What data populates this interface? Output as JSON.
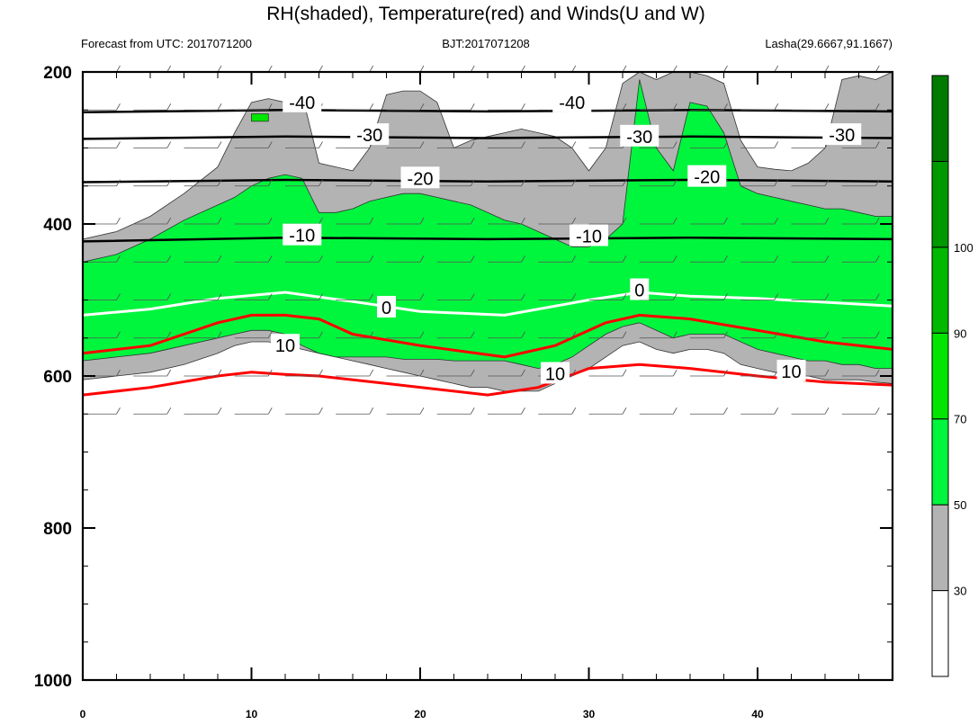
{
  "chart_data": {
    "type": "heatmap",
    "title": "RH(shaded), Temperature(red) and Winds(U and W)",
    "subtitle_left": "Forecast from UTC: 2017071200",
    "subtitle_center": "BJT:2017071208",
    "subtitle_right": "Lasha(29.6667,91.1667)",
    "xlabel": "",
    "ylabel": "",
    "xlim": [
      0,
      48
    ],
    "ylim": [
      1000,
      200
    ],
    "x_ticks": [
      "0",
      "10",
      "20",
      "30",
      "40"
    ],
    "y_ticks": [
      "200",
      "400",
      "600",
      "800",
      "1000"
    ],
    "grid": false,
    "legend": "right colorbar",
    "colorbar": {
      "levels": [
        "30",
        "50",
        "70",
        "90",
        "100"
      ],
      "colors": [
        "#ffffff",
        "#b3b3b3",
        "#00f53d",
        "#00e600",
        "#00b800",
        "#009900",
        "#007a00"
      ]
    },
    "series": [
      {
        "name": "RH>30",
        "color": "#b3b3b3",
        "x": [
          0,
          2,
          4,
          6,
          8,
          9,
          10,
          11,
          12,
          13,
          14,
          15,
          16,
          17,
          18,
          19,
          20,
          21,
          22,
          23,
          24,
          25,
          26,
          27,
          28,
          29,
          30,
          31,
          32,
          33,
          34,
          35,
          36,
          37,
          38,
          39,
          40,
          41,
          42,
          43,
          44,
          45,
          46,
          47,
          48
        ],
        "top": [
          420,
          410,
          390,
          360,
          325,
          280,
          240,
          235,
          240,
          230,
          320,
          325,
          330,
          300,
          230,
          225,
          225,
          240,
          300,
          290,
          285,
          280,
          275,
          280,
          285,
          300,
          330,
          300,
          215,
          200,
          210,
          200,
          200,
          205,
          215,
          290,
          325,
          328,
          330,
          320,
          300,
          210,
          205,
          210,
          200
        ],
        "bottom": [
          605,
          600,
          595,
          585,
          570,
          560,
          555,
          555,
          560,
          565,
          570,
          575,
          580,
          585,
          590,
          595,
          600,
          605,
          610,
          615,
          615,
          620,
          620,
          620,
          610,
          600,
          590,
          575,
          560,
          555,
          565,
          570,
          565,
          565,
          570,
          585,
          590,
          595,
          600,
          600,
          605,
          605,
          605,
          608,
          610
        ]
      },
      {
        "name": "RH>50",
        "color": "#00f53d",
        "x": [
          0,
          2,
          4,
          6,
          8,
          9,
          10,
          11,
          12,
          13,
          14,
          15,
          16,
          17,
          18,
          19,
          20,
          21,
          22,
          23,
          24,
          25,
          26,
          27,
          28,
          29,
          30,
          31,
          32,
          33,
          34,
          35,
          36,
          37,
          38,
          39,
          40,
          41,
          42,
          43,
          44,
          45,
          46,
          47,
          48
        ],
        "top": [
          450,
          440,
          420,
          395,
          375,
          365,
          350,
          340,
          335,
          340,
          385,
          385,
          380,
          370,
          365,
          360,
          360,
          365,
          370,
          375,
          385,
          395,
          400,
          410,
          420,
          430,
          430,
          420,
          400,
          210,
          300,
          330,
          240,
          245,
          280,
          350,
          360,
          365,
          370,
          375,
          380,
          380,
          385,
          390,
          390
        ],
        "bottom": [
          580,
          575,
          570,
          560,
          550,
          545,
          540,
          540,
          545,
          560,
          570,
          575,
          575,
          575,
          575,
          578,
          578,
          578,
          580,
          580,
          580,
          580,
          585,
          590,
          585,
          575,
          560,
          545,
          535,
          530,
          540,
          550,
          545,
          545,
          545,
          555,
          565,
          570,
          575,
          580,
          580,
          585,
          585,
          590,
          590
        ]
      },
      {
        "name": "RH>70",
        "color": "#00e600",
        "x": [
          10,
          11
        ],
        "top": [
          255,
          255
        ],
        "bottom": [
          265,
          265
        ]
      },
      {
        "name": "T=-40",
        "color": "#000000",
        "x": [
          0,
          12,
          24,
          36,
          48
        ],
        "y": [
          253,
          250,
          252,
          250,
          252
        ]
      },
      {
        "name": "T=-30",
        "color": "#000000",
        "x": [
          0,
          12,
          24,
          36,
          48
        ],
        "y": [
          288,
          285,
          287,
          285,
          287
        ]
      },
      {
        "name": "T=-20",
        "color": "#000000",
        "x": [
          0,
          12,
          24,
          36,
          48
        ],
        "y": [
          345,
          342,
          344,
          342,
          344
        ]
      },
      {
        "name": "T=-10",
        "color": "#000000",
        "x": [
          0,
          12,
          24,
          36,
          48
        ],
        "y": [
          423,
          418,
          420,
          418,
          420
        ]
      },
      {
        "name": "T=0",
        "color": "#ffffff",
        "x": [
          0,
          4,
          8,
          12,
          16,
          20,
          25,
          30,
          33,
          36,
          40,
          44,
          48
        ],
        "y": [
          520,
          512,
          498,
          490,
          502,
          515,
          520,
          500,
          490,
          495,
          498,
          503,
          508
        ]
      },
      {
        "name": "T=10",
        "color": "#ff0000",
        "x": [
          0,
          4,
          8,
          10,
          12,
          14,
          16,
          20,
          25,
          28,
          31,
          33,
          36,
          40,
          44,
          48
        ],
        "y": [
          570,
          560,
          530,
          520,
          520,
          525,
          545,
          560,
          575,
          560,
          530,
          520,
          525,
          540,
          555,
          565
        ]
      },
      {
        "name": "T=20",
        "color": "#ff0000",
        "x": [
          0,
          4,
          8,
          10,
          12,
          14,
          18,
          24,
          27,
          30,
          33,
          36,
          40,
          44,
          48
        ],
        "y": [
          625,
          615,
          600,
          595,
          598,
          600,
          610,
          625,
          615,
          590,
          585,
          590,
          600,
          608,
          612
        ]
      }
    ],
    "contour_labels": [
      {
        "text": "-40",
        "x": 13,
        "y": 240
      },
      {
        "text": "-40",
        "x": 29,
        "y": 240
      },
      {
        "text": "-30",
        "x": 17,
        "y": 283
      },
      {
        "text": "-30",
        "x": 33,
        "y": 285
      },
      {
        "text": "-30",
        "x": 45,
        "y": 283
      },
      {
        "text": "-20",
        "x": 20,
        "y": 340
      },
      {
        "text": "-20",
        "x": 37,
        "y": 338
      },
      {
        "text": "-10",
        "x": 13,
        "y": 415
      },
      {
        "text": "-10",
        "x": 30,
        "y": 416
      },
      {
        "text": "0",
        "x": 18,
        "y": 510
      },
      {
        "text": "0",
        "x": 33,
        "y": 487
      },
      {
        "text": "10",
        "x": 12,
        "y": 560
      },
      {
        "text": "10",
        "x": 28,
        "y": 597
      },
      {
        "text": "10",
        "x": 42,
        "y": 594
      }
    ]
  }
}
